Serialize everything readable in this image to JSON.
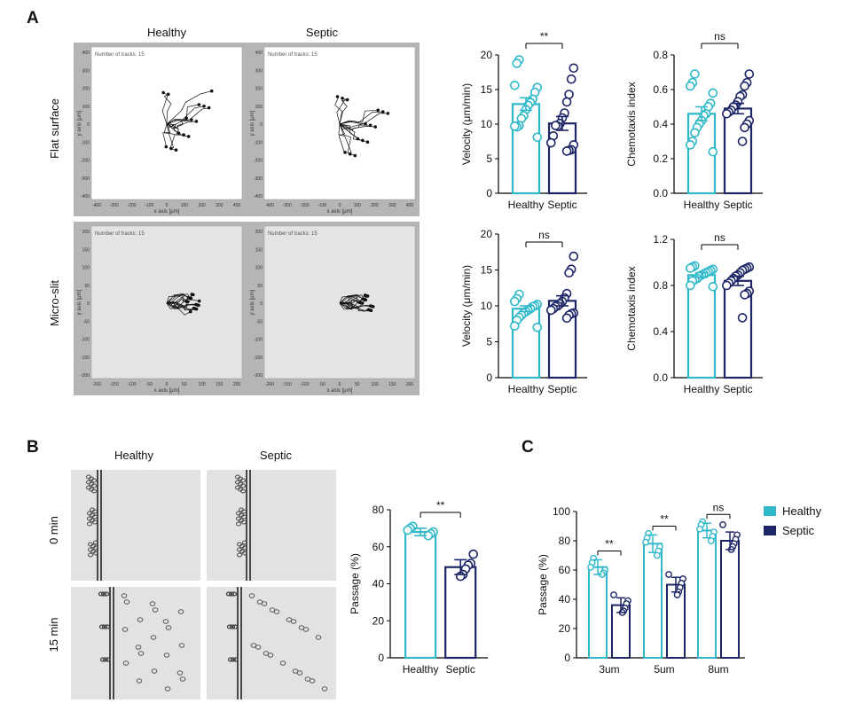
{
  "colors": {
    "healthy": "#2fb8c9",
    "septic": "#1c2566",
    "plot_bg": "#ffffff",
    "panel_gray": "#b5b5b5",
    "micro_bg": "#e4e4e4"
  },
  "panel_labels": [
    "A",
    "B",
    "C"
  ],
  "section_a": {
    "col_headers": [
      "Healthy",
      "Septic"
    ],
    "row_labels": [
      "Flat surface",
      "Micro-slit"
    ],
    "tracks_label": "Number of tracks: 15",
    "x_axis_label": "x axis [μm]",
    "y_axis_label": "y axis [μm]",
    "flat_ticks": [
      "-400",
      "-300",
      "-200",
      "-100",
      "0",
      "100",
      "200",
      "300",
      "400"
    ],
    "micro_ticks": [
      "-200",
      "-150",
      "-100",
      "-50",
      "0",
      "50",
      "100",
      "150",
      "200"
    ]
  },
  "section_b": {
    "col_headers": [
      "Healthy",
      "Septic"
    ],
    "row_labels": [
      "0 min",
      "15 min"
    ]
  },
  "legend": [
    "Healthy",
    "Septic"
  ],
  "chart_data": [
    {
      "id": "velocity-flat",
      "type": "bar",
      "title": "",
      "ylabel": "Velocity (μm/min)",
      "xlabel": "",
      "ylim": [
        0,
        20
      ],
      "yticks": [
        "0",
        "5",
        "10",
        "15",
        "20"
      ],
      "categories": [
        "Healthy",
        "Septic"
      ],
      "values": [
        12.9,
        10.1
      ],
      "sem": [
        0.9,
        1.0
      ],
      "points": [
        [
          19.3,
          18.8,
          15.6,
          15.3,
          14.6,
          13.6,
          13.1,
          12.7,
          12.1,
          11.2,
          10.8,
          9.8,
          9.6,
          9.7,
          8.1
        ],
        [
          18.1,
          16.5,
          14.3,
          13.2,
          11.6,
          10.9,
          10.1,
          9.7,
          9.8,
          8.3,
          7.3,
          7.0,
          6.3,
          6.2,
          6.1
        ]
      ],
      "significance": "**"
    },
    {
      "id": "chemotaxis-flat",
      "type": "bar",
      "title": "",
      "ylabel": "Chemotaxis index",
      "xlabel": "",
      "ylim": [
        0,
        0.8
      ],
      "yticks": [
        "0.0",
        "0.2",
        "0.4",
        "0.6",
        "0.8"
      ],
      "categories": [
        "Healthy",
        "Septic"
      ],
      "values": [
        0.46,
        0.49
      ],
      "sem": [
        0.04,
        0.03
      ],
      "points": [
        [
          0.69,
          0.64,
          0.62,
          0.58,
          0.52,
          0.5,
          0.46,
          0.45,
          0.42,
          0.4,
          0.38,
          0.35,
          0.3,
          0.28,
          0.24
        ],
        [
          0.69,
          0.64,
          0.62,
          0.57,
          0.56,
          0.53,
          0.51,
          0.5,
          0.48,
          0.47,
          0.46,
          0.42,
          0.4,
          0.38,
          0.3
        ]
      ],
      "significance": "ns"
    },
    {
      "id": "velocity-slit",
      "type": "bar",
      "title": "",
      "ylabel": "Velocity (μm/min)",
      "xlabel": "",
      "ylim": [
        0,
        20
      ],
      "yticks": [
        "0",
        "5",
        "10",
        "15",
        "20"
      ],
      "categories": [
        "Healthy",
        "Septic"
      ],
      "values": [
        9.6,
        10.7
      ],
      "sem": [
        0.4,
        0.7
      ],
      "points": [
        [
          11.6,
          11.0,
          10.6,
          10.2,
          10.0,
          9.9,
          9.6,
          9.4,
          9.2,
          9.0,
          8.7,
          8.4,
          8.0,
          7.2,
          7.0
        ],
        [
          16.9,
          15.1,
          14.6,
          11.7,
          11.1,
          10.6,
          10.3,
          10.0,
          9.9,
          9.6,
          9.4,
          9.0,
          8.9,
          8.7,
          8.3
        ]
      ],
      "significance": "ns"
    },
    {
      "id": "chemotaxis-slit",
      "type": "bar",
      "title": "",
      "ylabel": "Chemotaxis index",
      "xlabel": "",
      "ylim": [
        0,
        1.2
      ],
      "yticks": [
        "0.0",
        "0.4",
        "0.8",
        "1.2"
      ],
      "categories": [
        "Healthy",
        "Septic"
      ],
      "values": [
        0.89,
        0.84
      ],
      "sem": [
        0.02,
        0.04
      ],
      "points": [
        [
          0.97,
          0.96,
          0.95,
          0.94,
          0.93,
          0.92,
          0.91,
          0.9,
          0.89,
          0.88,
          0.86,
          0.85,
          0.84,
          0.8,
          0.79
        ],
        [
          0.96,
          0.95,
          0.94,
          0.93,
          0.91,
          0.89,
          0.88,
          0.86,
          0.84,
          0.82,
          0.8,
          0.75,
          0.73,
          0.72,
          0.52
        ]
      ],
      "significance": "ns"
    },
    {
      "id": "passage-b",
      "type": "bar",
      "title": "",
      "ylabel": "Passage (%)",
      "xlabel": "",
      "ylim": [
        0,
        80
      ],
      "yticks": [
        "0",
        "20",
        "40",
        "60",
        "80"
      ],
      "categories": [
        "Healthy",
        "Septic"
      ],
      "values": [
        68,
        49
      ],
      "sem": [
        2,
        4
      ],
      "points": [
        [
          71,
          70,
          69,
          68,
          67,
          66
        ],
        [
          56,
          51,
          50,
          48,
          45,
          44
        ]
      ],
      "significance": "**"
    },
    {
      "id": "passage-c",
      "type": "bar",
      "title": "",
      "ylabel": "Passage (%)",
      "xlabel": "",
      "ylim": [
        0,
        100
      ],
      "yticks": [
        "0",
        "20",
        "40",
        "60",
        "80",
        "100"
      ],
      "categories": [
        "3um",
        "5um",
        "8um"
      ],
      "series": [
        {
          "name": "Healthy",
          "values": [
            62,
            78,
            87
          ],
          "sd": [
            5,
            6,
            5
          ],
          "points": [
            [
              68,
              65,
              62,
              60,
              58,
              57
            ],
            [
              85,
              82,
              79,
              76,
              73,
              70
            ],
            [
              93,
              91,
              88,
              86,
              83,
              80
            ]
          ]
        },
        {
          "name": "Septic",
          "values": [
            36,
            50,
            80
          ],
          "sd": [
            5,
            5,
            6
          ],
          "points": [
            [
              43,
              39,
              37,
              34,
              32,
              31
            ],
            [
              57,
              54,
              51,
              48,
              45,
              43
            ],
            [
              91,
              84,
              81,
              78,
              76,
              74
            ]
          ]
        }
      ],
      "significance": [
        "**",
        "**",
        "ns"
      ]
    }
  ]
}
